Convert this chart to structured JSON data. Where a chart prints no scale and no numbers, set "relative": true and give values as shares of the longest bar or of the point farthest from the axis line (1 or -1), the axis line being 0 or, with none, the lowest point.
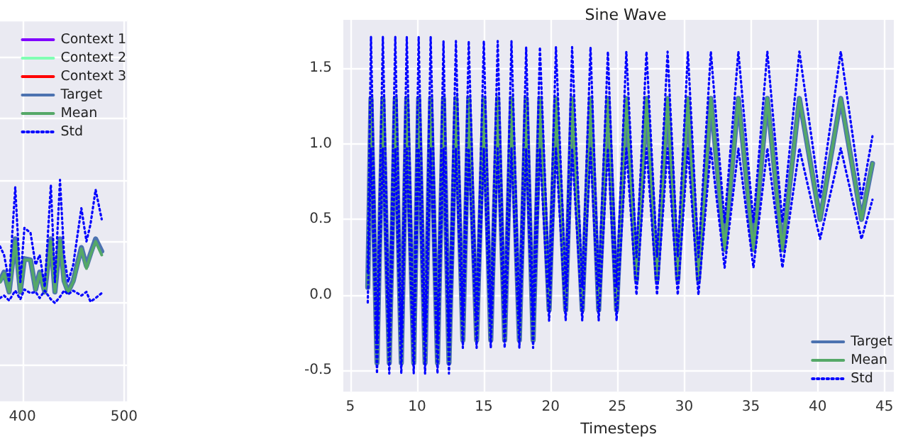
{
  "chart_data": [
    {
      "type": "line",
      "relative": true,
      "xlim": [
        378,
        503
      ],
      "xticks": [
        400,
        500
      ],
      "tick_labels": "x",
      "grid": true,
      "legend": "top right",
      "marker": "none",
      "x": [
        378,
        382,
        387,
        393,
        398,
        402,
        408,
        413,
        417,
        422,
        428,
        432,
        437,
        441,
        445,
        450,
        458,
        463,
        467,
        472,
        478
      ],
      "series": [
        {
          "name": "Context 1",
          "color": "#8000ff",
          "values": [
            null,
            null,
            null,
            null,
            null,
            null,
            null,
            null,
            null,
            null,
            null,
            null,
            null,
            null,
            null,
            null,
            null,
            null,
            null,
            null,
            null
          ]
        },
        {
          "name": "Context 2",
          "color": "#80ffb4",
          "values": [
            null,
            null,
            null,
            null,
            null,
            null,
            null,
            null,
            null,
            null,
            null,
            null,
            null,
            null,
            null,
            null,
            null,
            null,
            null,
            null,
            null
          ]
        },
        {
          "name": "Context 3",
          "color": "#ff0000",
          "values": [
            null,
            null,
            null,
            null,
            null,
            null,
            null,
            null,
            null,
            null,
            null,
            null,
            null,
            null,
            null,
            null,
            null,
            null,
            null,
            null,
            null
          ]
        },
        {
          "name": "Target",
          "color": "#4c72b0",
          "values": [
            0.18,
            0.25,
            0.09,
            0.52,
            0.09,
            0.36,
            0.35,
            0.11,
            0.25,
            0.09,
            0.52,
            0.09,
            0.52,
            0.18,
            0.09,
            0.18,
            0.45,
            0.3,
            0.4,
            0.52,
            0.42
          ]
        },
        {
          "name": "Mean",
          "color": "#55a868",
          "values": [
            0.17,
            0.24,
            0.09,
            0.5,
            0.09,
            0.35,
            0.35,
            0.11,
            0.24,
            0.09,
            0.5,
            0.09,
            0.51,
            0.17,
            0.09,
            0.17,
            0.44,
            0.28,
            0.39,
            0.5,
            0.39
          ]
        },
        {
          "name": "Std",
          "color": "#0000ff",
          "line_style": "dotted",
          "values": [
            0.46,
            0.39,
            0.17,
            0.94,
            0.17,
            0.61,
            0.57,
            0.31,
            0.39,
            0.13,
            0.96,
            0.17,
            1,
            0.39,
            0.17,
            0.31,
            0.77,
            0.5,
            0.64,
            0.92,
            0.68
          ]
        },
        {
          "color": "#0000ff",
          "line_style": "dotted",
          "values": [
            0.04,
            0.06,
            0.02,
            0.1,
            0.03,
            0.11,
            0.08,
            0.09,
            0.04,
            0.1,
            0.03,
            0.0,
            0.05,
            0.1,
            0.07,
            0.1,
            0.06,
            0.09,
            0.01,
            0.04,
            0.08
          ]
        }
      ]
    },
    {
      "type": "line",
      "title": "Sine Wave",
      "xlabel": "Timesteps",
      "xlim": [
        4.48,
        45.7
      ],
      "xticks": [
        5,
        10,
        15,
        20,
        25,
        30,
        35,
        40,
        45
      ],
      "ylim": [
        -0.64,
        1.82
      ],
      "yticks": [
        -0.5,
        {
          "value": 0,
          "label": "0.0"
        },
        0.5,
        {
          "value": 1,
          "label": "1.0"
        },
        1.5
      ],
      "grid": true,
      "legend": "bottom right",
      "marker": "none",
      "x": [
        6.31,
        6.55,
        7.0,
        7.44,
        7.92,
        8.37,
        8.82,
        9.23,
        9.75,
        10.12,
        10.6,
        11.02,
        11.53,
        11.98,
        12.39,
        12.91,
        13.43,
        13.87,
        14.46,
        15.0,
        15.52,
        16.04,
        16.56,
        17.07,
        17.66,
        18.17,
        18.69,
        19.2,
        19.89,
        20.4,
        21.13,
        21.61,
        22.37,
        22.99,
        23.6,
        24.29,
        24.94,
        25.67,
        26.43,
        27.18,
        27.97,
        28.76,
        29.52,
        30.28,
        31.07,
        32.0,
        33.03,
        34.06,
        35.19,
        36.23,
        37.36,
        38.63,
        40.18,
        41.73,
        43.28,
        44.1
      ],
      "series": [
        {
          "name": "Target",
          "color": "#4c72b0",
          "values": [
            0.05,
            1.3,
            -0.45,
            1.3,
            -0.45,
            1.3,
            -0.45,
            1.3,
            -0.45,
            1.3,
            -0.45,
            1.3,
            -0.45,
            1.3,
            -0.45,
            1.3,
            -0.3,
            1.3,
            -0.3,
            1.3,
            -0.3,
            1.3,
            -0.3,
            1.3,
            -0.3,
            1.3,
            -0.3,
            1.3,
            -0.1,
            1.3,
            -0.1,
            1.3,
            -0.1,
            1.3,
            -0.1,
            1.3,
            -0.1,
            1.3,
            0.1,
            1.3,
            0.1,
            1.3,
            0.1,
            1.3,
            0.1,
            1.3,
            0.3,
            1.3,
            0.3,
            1.3,
            0.3,
            1.3,
            0.5,
            1.3,
            0.5,
            0.87
          ]
        },
        {
          "name": "Mean",
          "color": "#55a868",
          "values": [
            0.05,
            1.3,
            -0.45,
            1.3,
            -0.45,
            1.3,
            -0.45,
            1.3,
            -0.45,
            1.3,
            -0.45,
            1.3,
            -0.45,
            1.3,
            -0.45,
            1.3,
            -0.3,
            1.3,
            -0.3,
            1.3,
            -0.3,
            1.3,
            -0.3,
            1.3,
            -0.3,
            1.3,
            -0.3,
            1.3,
            -0.1,
            1.3,
            -0.1,
            1.3,
            -0.1,
            1.3,
            -0.1,
            1.3,
            -0.1,
            1.3,
            0.1,
            1.3,
            0.1,
            1.3,
            0.1,
            1.3,
            0.1,
            1.3,
            0.3,
            1.3,
            0.3,
            1.3,
            0.3,
            1.3,
            0.5,
            1.3,
            0.5,
            0.87
          ]
        },
        {
          "name": "Std",
          "color": "#0000ff",
          "line_style": "dotted",
          "values": [
            0.15,
            1.71,
            -0.3,
            1.71,
            -0.3,
            1.71,
            -0.3,
            1.71,
            -0.3,
            1.71,
            -0.3,
            1.71,
            -0.3,
            1.68,
            -0.3,
            1.68,
            -0.15,
            1.68,
            -0.15,
            1.68,
            -0.15,
            1.68,
            -0.15,
            1.68,
            -0.15,
            1.64,
            -0.15,
            1.64,
            0.05,
            1.64,
            0.05,
            1.64,
            0.05,
            1.64,
            0.05,
            1.61,
            0.05,
            1.61,
            0.25,
            1.61,
            0.25,
            1.61,
            0.25,
            1.61,
            0.25,
            1.61,
            0.48,
            1.61,
            0.48,
            1.61,
            0.48,
            1.61,
            0.64,
            1.61,
            0.64,
            1.05
          ]
        },
        {
          "color": "#0000ff",
          "line_style": "dotted",
          "values": [
            -0.05,
            0.97,
            -0.52,
            0.97,
            -0.52,
            0.97,
            -0.52,
            0.97,
            -0.52,
            0.97,
            -0.52,
            0.97,
            -0.52,
            0.97,
            -0.52,
            0.97,
            -0.35,
            0.97,
            -0.35,
            0.97,
            -0.35,
            0.97,
            -0.35,
            0.97,
            -0.35,
            0.97,
            -0.35,
            0.97,
            -0.17,
            0.97,
            -0.17,
            0.97,
            -0.17,
            0.97,
            -0.17,
            0.97,
            -0.17,
            0.97,
            0.0,
            0.97,
            0.0,
            0.97,
            0.0,
            0.97,
            0.0,
            0.97,
            0.18,
            0.97,
            0.18,
            0.97,
            0.18,
            0.97,
            0.37,
            0.97,
            0.37,
            0.63
          ]
        }
      ]
    }
  ]
}
